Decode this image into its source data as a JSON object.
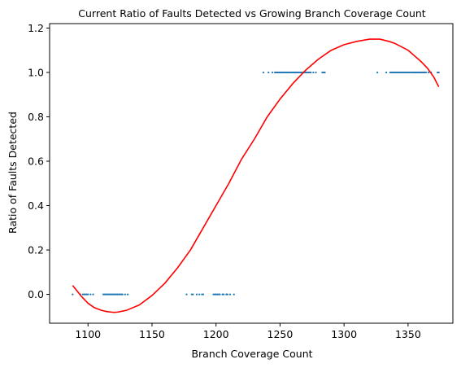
{
  "chart_data": {
    "type": "scatter",
    "title": "Current Ratio of Faults Detected vs Growing Branch Coverage Count",
    "xlabel": "Branch Coverage Count",
    "ylabel": "Ratio of Faults Detected",
    "xlim": [
      1070,
      1385
    ],
    "ylim": [
      -0.13,
      1.22
    ],
    "xticks": [
      1100,
      1150,
      1200,
      1250,
      1300,
      1350
    ],
    "xtick_labels": [
      "1100",
      "1150",
      "1200",
      "1250",
      "1300",
      "1350"
    ],
    "yticks": [
      0.0,
      0.2,
      0.4,
      0.6,
      0.8,
      1.0,
      1.2
    ],
    "ytick_labels": [
      "0.0",
      "0.2",
      "0.4",
      "0.6",
      "0.8",
      "1.0",
      "1.2"
    ],
    "grid": false,
    "colors": {
      "points": "#1f77b4",
      "fit": "#ff0000"
    },
    "series": [
      {
        "kind": "points",
        "x": [
          1088,
          1094,
          1096,
          1097,
          1098,
          1099,
          1100,
          1102,
          1104,
          1112,
          1113,
          1114,
          1115,
          1116,
          1117,
          1118,
          1119,
          1120,
          1121,
          1122,
          1123,
          1124,
          1125,
          1126,
          1127,
          1129,
          1131,
          1177,
          1181,
          1182,
          1185,
          1187,
          1189,
          1190,
          1198,
          1199,
          1200,
          1201,
          1202,
          1203,
          1205,
          1206,
          1208,
          1209,
          1211,
          1214,
          1237,
          1241,
          1244,
          1246,
          1247,
          1248,
          1249,
          1250,
          1251,
          1252,
          1253,
          1254,
          1255,
          1256,
          1257,
          1258,
          1259,
          1260,
          1261,
          1262,
          1263,
          1264,
          1265,
          1266,
          1267,
          1268,
          1269,
          1270,
          1271,
          1272,
          1273,
          1274,
          1276,
          1278,
          1283,
          1284,
          1285,
          1326,
          1333,
          1336,
          1337,
          1338,
          1339,
          1340,
          1341,
          1342,
          1343,
          1344,
          1345,
          1346,
          1347,
          1348,
          1349,
          1350,
          1351,
          1352,
          1353,
          1354,
          1355,
          1356,
          1357,
          1358,
          1359,
          1360,
          1361,
          1362,
          1363,
          1364,
          1366,
          1368,
          1373,
          1374
        ],
        "y": [
          0,
          0,
          0,
          0,
          0,
          0,
          0,
          0,
          0,
          0,
          0,
          0,
          0,
          0,
          0,
          0,
          0,
          0,
          0,
          0,
          0,
          0,
          0,
          0,
          0,
          0,
          0,
          0,
          0,
          0,
          0,
          0,
          0,
          0,
          0,
          0,
          0,
          0,
          0,
          0,
          0,
          0,
          0,
          0,
          0,
          0,
          1,
          1,
          1,
          1,
          1,
          1,
          1,
          1,
          1,
          1,
          1,
          1,
          1,
          1,
          1,
          1,
          1,
          1,
          1,
          1,
          1,
          1,
          1,
          1,
          1,
          1,
          1,
          1,
          1,
          1,
          1,
          1,
          1,
          1,
          1,
          1,
          1,
          1,
          1,
          1,
          1,
          1,
          1,
          1,
          1,
          1,
          1,
          1,
          1,
          1,
          1,
          1,
          1,
          1,
          1,
          1,
          1,
          1,
          1,
          1,
          1,
          1,
          1,
          1,
          1,
          1,
          1,
          1,
          1,
          1,
          1,
          1
        ]
      },
      {
        "kind": "curve",
        "x": [
          1088,
          1095,
          1100,
          1105,
          1110,
          1115,
          1120,
          1123,
          1130,
          1140,
          1150,
          1160,
          1170,
          1180,
          1190,
          1200,
          1210,
          1220,
          1230,
          1240,
          1250,
          1260,
          1270,
          1280,
          1290,
          1300,
          1310,
          1320,
          1328,
          1335,
          1340,
          1350,
          1360,
          1365,
          1370,
          1374
        ],
        "y": [
          0.04,
          -0.01,
          -0.04,
          -0.06,
          -0.071,
          -0.078,
          -0.081,
          -0.08,
          -0.072,
          -0.048,
          -0.005,
          0.05,
          0.12,
          0.2,
          0.3,
          0.4,
          0.5,
          0.61,
          0.7,
          0.8,
          0.88,
          0.95,
          1.01,
          1.06,
          1.1,
          1.125,
          1.14,
          1.15,
          1.15,
          1.14,
          1.13,
          1.1,
          1.05,
          1.02,
          0.98,
          0.935
        ]
      }
    ]
  }
}
